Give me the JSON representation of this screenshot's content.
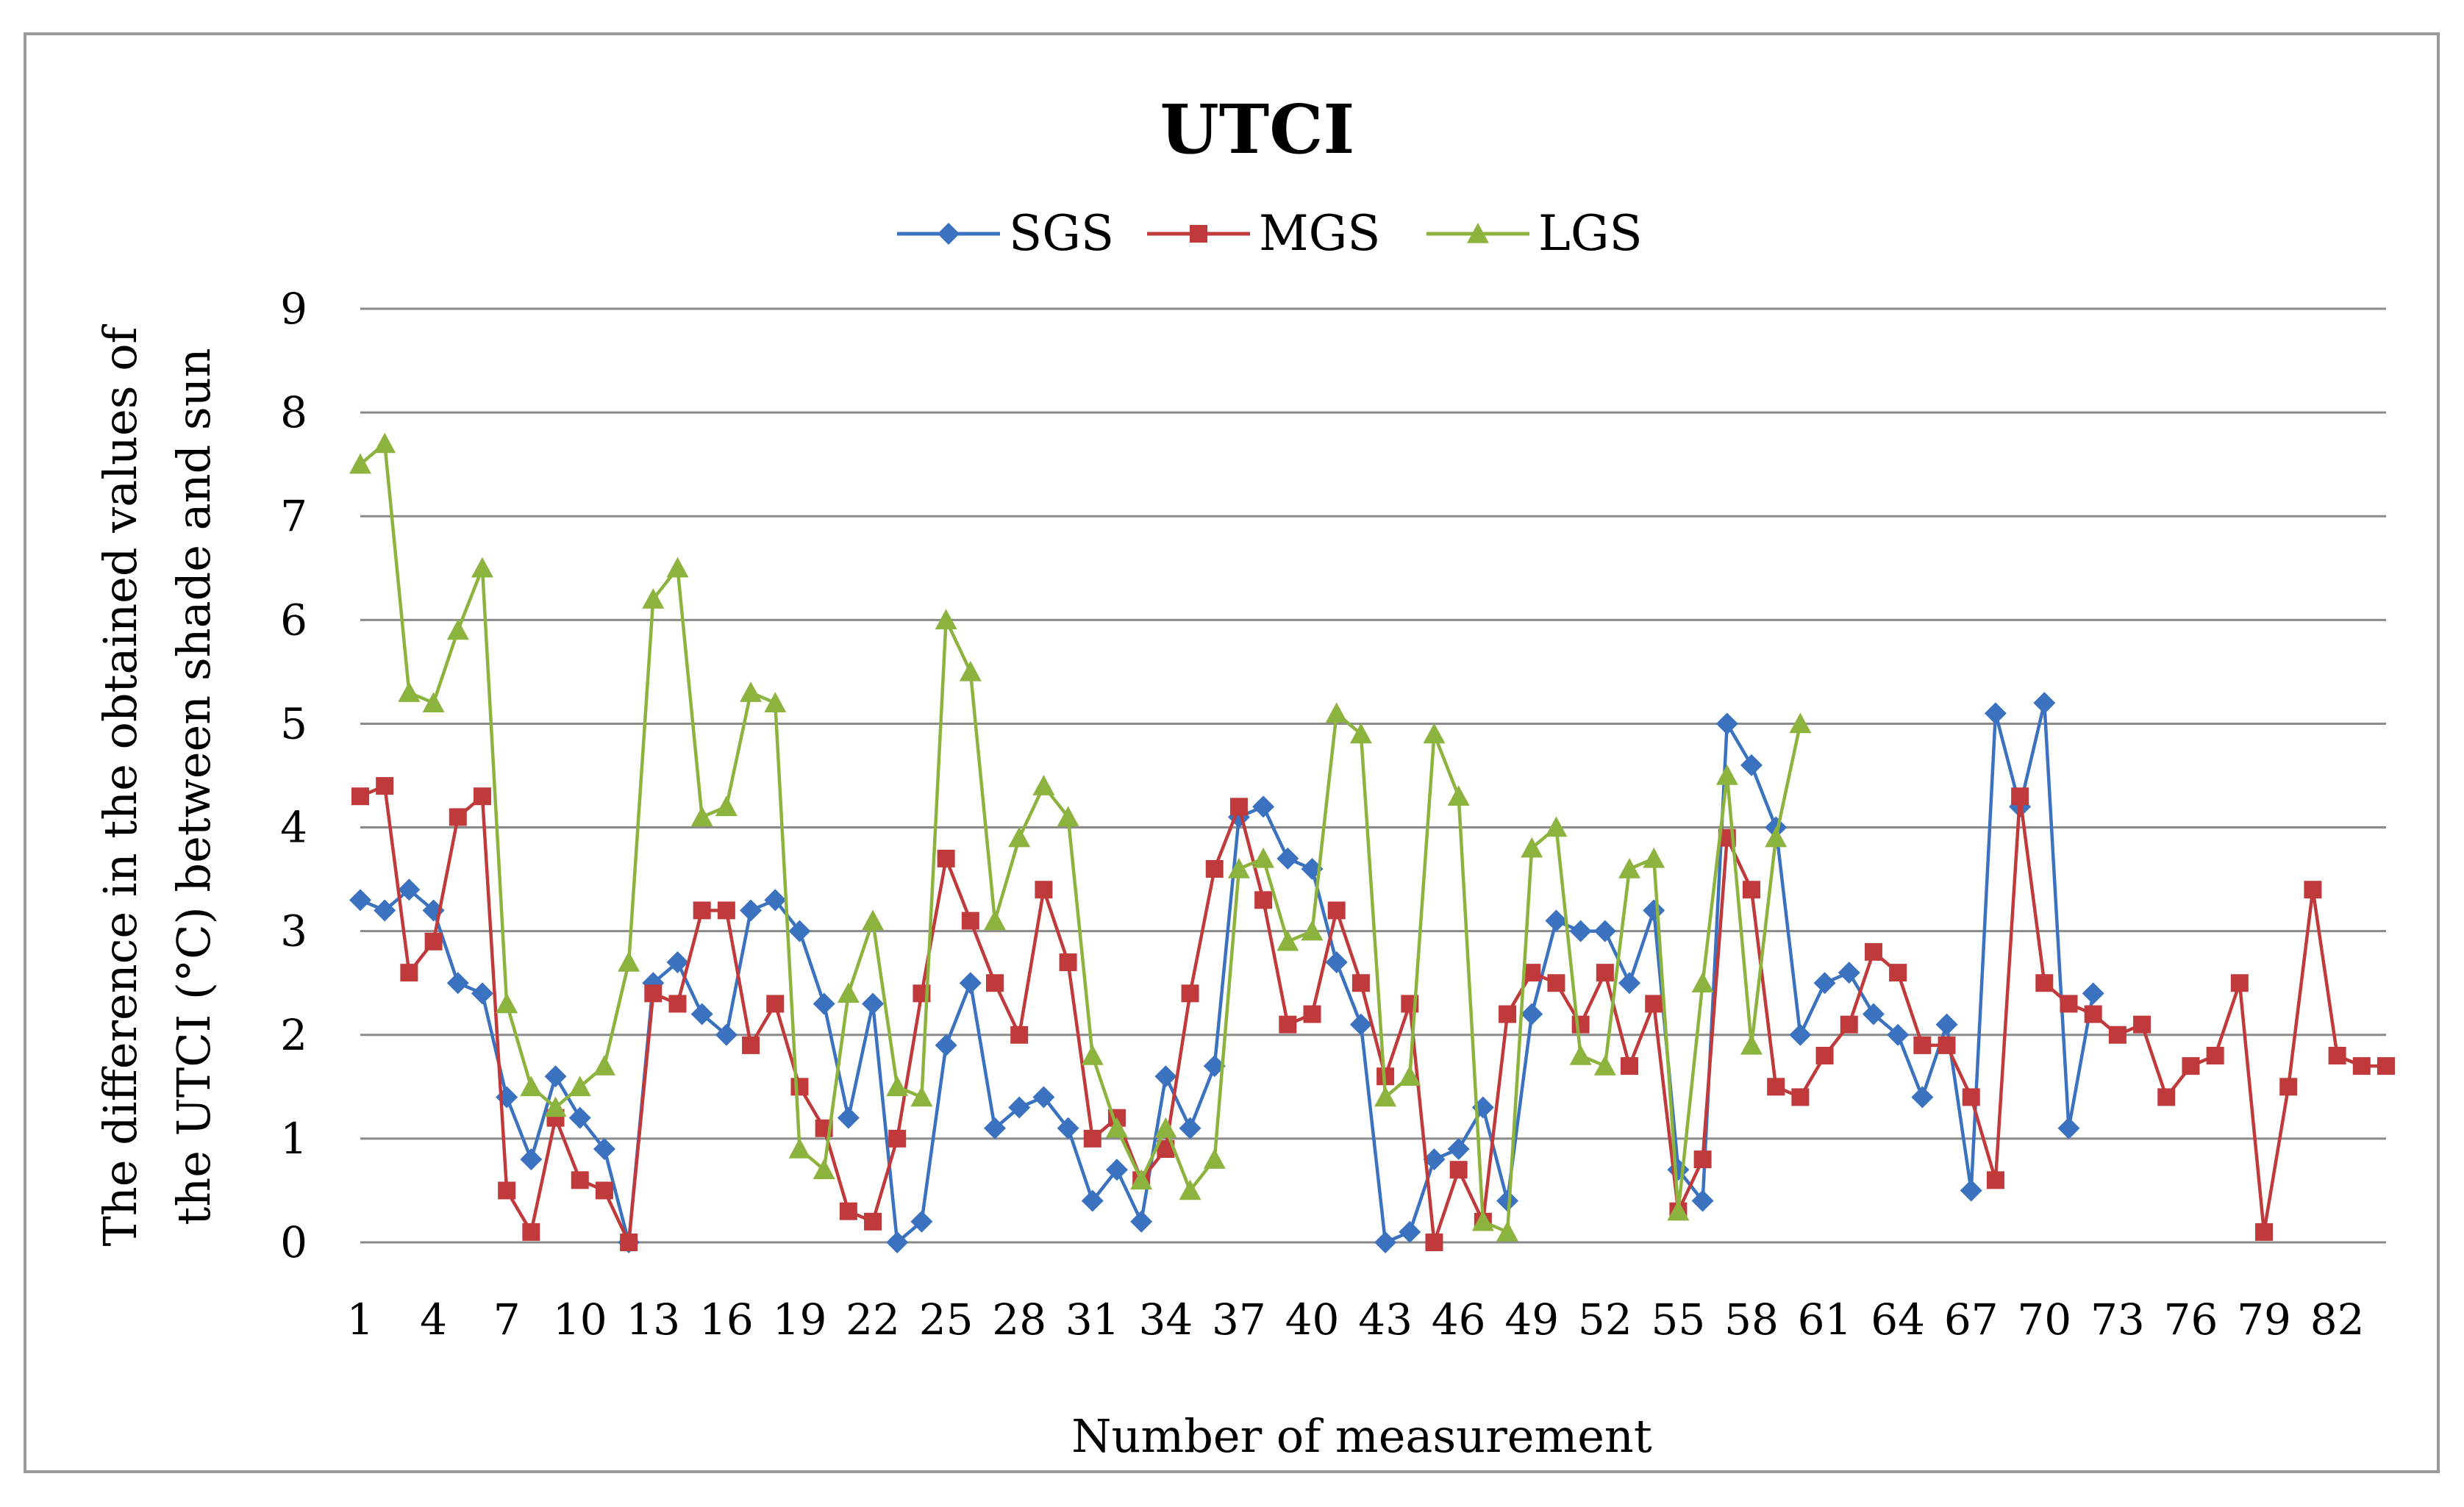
{
  "chart_data": {
    "type": "line",
    "title": "UTCI",
    "xlabel": "Number of measurement",
    "ylabel_lines": [
      "The difference in the obtained values of",
      "the UTCI (°C) between shade and sun"
    ],
    "ylim": [
      0,
      9
    ],
    "yticks": [
      "0",
      "1",
      "2",
      "3",
      "4",
      "5",
      "6",
      "7",
      "8",
      "9"
    ],
    "xlim": [
      1,
      84
    ],
    "xticks": [
      "1",
      "4",
      "7",
      "10",
      "13",
      "16",
      "19",
      "22",
      "25",
      "28",
      "31",
      "34",
      "37",
      "40",
      "43",
      "46",
      "49",
      "52",
      "55",
      "58",
      "61",
      "64",
      "67",
      "70",
      "73",
      "76",
      "79",
      "82"
    ],
    "grid": true,
    "legend_position": "top-center",
    "series": [
      {
        "name": "SGS",
        "color": "#3b72c0",
        "marker": "diamond",
        "values": [
          3.3,
          3.2,
          3.4,
          3.2,
          2.5,
          2.4,
          1.4,
          0.8,
          1.6,
          1.2,
          0.9,
          0.0,
          2.5,
          2.7,
          2.2,
          2.0,
          3.2,
          3.3,
          3.0,
          2.3,
          1.2,
          2.3,
          0.0,
          0.2,
          1.9,
          2.5,
          1.1,
          1.3,
          1.4,
          1.1,
          0.4,
          0.7,
          0.2,
          1.6,
          1.1,
          1.7,
          4.1,
          4.2,
          3.7,
          3.6,
          2.7,
          2.1,
          0.0,
          0.1,
          0.8,
          0.9,
          1.3,
          0.4,
          2.2,
          3.1,
          3.0,
          3.0,
          2.5,
          3.2,
          0.7,
          0.4,
          5.0,
          4.6,
          4.0,
          2.0,
          2.5,
          2.6,
          2.2,
          2.0,
          1.4,
          2.1,
          0.5,
          5.1,
          4.2,
          5.2,
          1.1,
          2.4
        ]
      },
      {
        "name": "MGS",
        "color": "#c0393b",
        "marker": "square",
        "values": [
          4.3,
          4.4,
          2.6,
          2.9,
          4.1,
          4.3,
          0.5,
          0.1,
          1.2,
          0.6,
          0.5,
          0.0,
          2.4,
          2.3,
          3.2,
          3.2,
          1.9,
          2.3,
          1.5,
          1.1,
          0.3,
          0.2,
          1.0,
          2.4,
          3.7,
          3.1,
          2.5,
          2.0,
          3.4,
          2.7,
          1.0,
          1.2,
          0.6,
          0.9,
          2.4,
          3.6,
          4.2,
          3.3,
          2.1,
          2.2,
          3.2,
          2.5,
          1.6,
          2.3,
          0.0,
          0.7,
          0.2,
          2.2,
          2.6,
          2.5,
          2.1,
          2.6,
          1.7,
          2.3,
          0.3,
          0.8,
          3.9,
          3.4,
          1.5,
          1.4,
          1.8,
          2.1,
          2.8,
          2.6,
          1.9,
          1.9,
          1.4,
          0.6,
          4.3,
          2.5,
          2.3,
          2.2,
          2.0,
          2.1,
          1.4,
          1.7,
          1.8,
          2.5,
          0.1,
          1.5,
          3.4,
          1.8,
          1.7,
          1.7
        ]
      },
      {
        "name": "LGS",
        "color": "#8db33f",
        "marker": "triangle",
        "values": [
          7.5,
          7.7,
          5.3,
          5.2,
          5.9,
          6.5,
          2.3,
          1.5,
          1.3,
          1.5,
          1.7,
          2.7,
          6.2,
          6.5,
          4.1,
          4.2,
          5.3,
          5.2,
          0.9,
          0.7,
          2.4,
          3.1,
          1.5,
          1.4,
          6.0,
          5.5,
          3.1,
          3.9,
          4.4,
          4.1,
          1.8,
          1.1,
          0.6,
          1.1,
          0.5,
          0.8,
          3.6,
          3.7,
          2.9,
          3.0,
          5.1,
          4.9,
          1.4,
          1.6,
          4.9,
          4.3,
          0.2,
          0.1,
          3.8,
          4.0,
          1.8,
          1.7,
          3.6,
          3.7,
          0.3,
          2.5,
          4.5,
          1.9,
          3.9,
          5.0
        ]
      }
    ]
  }
}
